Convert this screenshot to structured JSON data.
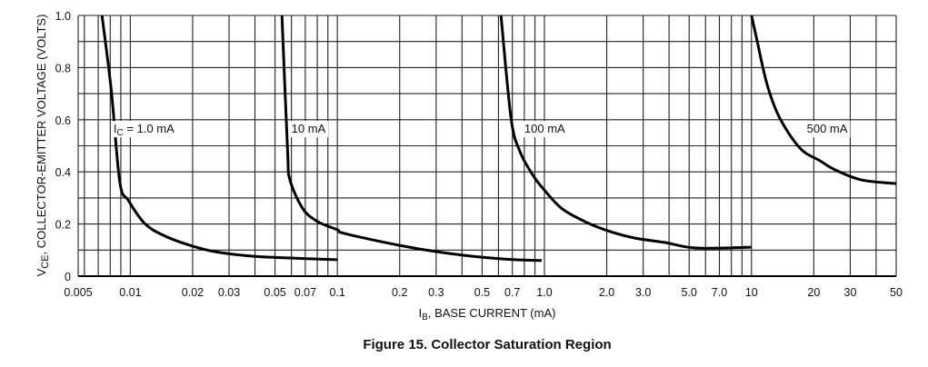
{
  "chart_data": {
    "type": "line",
    "title": "Figure 15. Collector Saturation Region",
    "xlabel": {
      "main": "I",
      "sub": "B",
      "rest": ", BASE CURRENT (mA)"
    },
    "ylabel": {
      "main": "V",
      "sub": "CE",
      "rest": ", COLLECTOR-EMITTER VOLTAGE (VOLTS)"
    },
    "xscale": "log",
    "xlim": [
      0.0056,
      50
    ],
    "ylim": [
      0,
      1.0
    ],
    "grid": true,
    "xticks": [
      {
        "v": 0.005,
        "l": "0.005"
      },
      {
        "v": 0.01,
        "l": "0.01"
      },
      {
        "v": 0.02,
        "l": "0.02"
      },
      {
        "v": 0.03,
        "l": "0.03"
      },
      {
        "v": 0.05,
        "l": "0.05"
      },
      {
        "v": 0.07,
        "l": "0.07"
      },
      {
        "v": 0.1,
        "l": "0.1"
      },
      {
        "v": 0.2,
        "l": "0.2"
      },
      {
        "v": 0.3,
        "l": "0.3"
      },
      {
        "v": 0.5,
        "l": "0.5"
      },
      {
        "v": 0.7,
        "l": "0.7"
      },
      {
        "v": 1,
        "l": "1.0"
      },
      {
        "v": 2,
        "l": "2.0"
      },
      {
        "v": 3,
        "l": "3.0"
      },
      {
        "v": 5,
        "l": "5.0"
      },
      {
        "v": 7,
        "l": "7.0"
      },
      {
        "v": 10,
        "l": "10"
      },
      {
        "v": 20,
        "l": "20"
      },
      {
        "v": 30,
        "l": "30"
      },
      {
        "v": 50,
        "l": "50"
      }
    ],
    "yticks": [
      {
        "v": 0,
        "l": "0"
      },
      {
        "v": 0.2,
        "l": "0.2"
      },
      {
        "v": 0.4,
        "l": "0.4"
      },
      {
        "v": 0.6,
        "l": "0.6"
      },
      {
        "v": 0.8,
        "l": "0.8"
      },
      {
        "v": 1.0,
        "l": "1.0"
      }
    ],
    "series": [
      {
        "name": "IC = 1.0 mA",
        "label": {
          "main": "I",
          "sub": "C",
          "rest": " = 1.0 mA"
        },
        "label_at": [
          0.0083,
          0.55
        ],
        "x": [
          0.0073,
          0.0081,
          0.0089,
          0.0098,
          0.0118,
          0.0148,
          0.0195,
          0.0256,
          0.0383,
          0.0575,
          0.1
        ],
        "y": [
          1.0,
          0.71,
          0.36,
          0.29,
          0.2,
          0.153,
          0.118,
          0.094,
          0.077,
          0.07,
          0.063
        ]
      },
      {
        "name": "10 mA",
        "label": {
          "main": "10 mA",
          "sub": "",
          "rest": ""
        },
        "label_at": [
          0.06,
          0.55
        ],
        "x": [
          0.054,
          0.0575,
          0.059,
          0.068,
          0.08,
          0.1,
          0.108,
          0.2,
          0.3,
          0.49,
          0.72,
          0.97
        ],
        "y": [
          1.0,
          0.48,
          0.37,
          0.26,
          0.21,
          0.178,
          0.164,
          0.118,
          0.094,
          0.073,
          0.063,
          0.06
        ]
      },
      {
        "name": "100 mA",
        "label": {
          "main": "100 mA",
          "sub": "",
          "rest": ""
        },
        "label_at": [
          0.8,
          0.55
        ],
        "x": [
          0.617,
          0.69,
          0.76,
          0.88,
          1.0,
          1.22,
          1.6,
          2.08,
          2.74,
          3.83,
          5.4,
          10
        ],
        "y": [
          1.0,
          0.606,
          0.48,
          0.387,
          0.33,
          0.258,
          0.206,
          0.171,
          0.146,
          0.129,
          0.108,
          0.111
        ]
      },
      {
        "name": "500 mA",
        "label": {
          "main": "500 mA",
          "sub": "",
          "rest": ""
        },
        "label_at": [
          18.5,
          0.55
        ],
        "x": [
          10,
          10.6,
          11.9,
          13.7,
          17.2,
          21.4,
          25.3,
          34,
          50
        ],
        "y": [
          1.0,
          0.91,
          0.735,
          0.606,
          0.49,
          0.443,
          0.408,
          0.369,
          0.355
        ]
      }
    ]
  }
}
